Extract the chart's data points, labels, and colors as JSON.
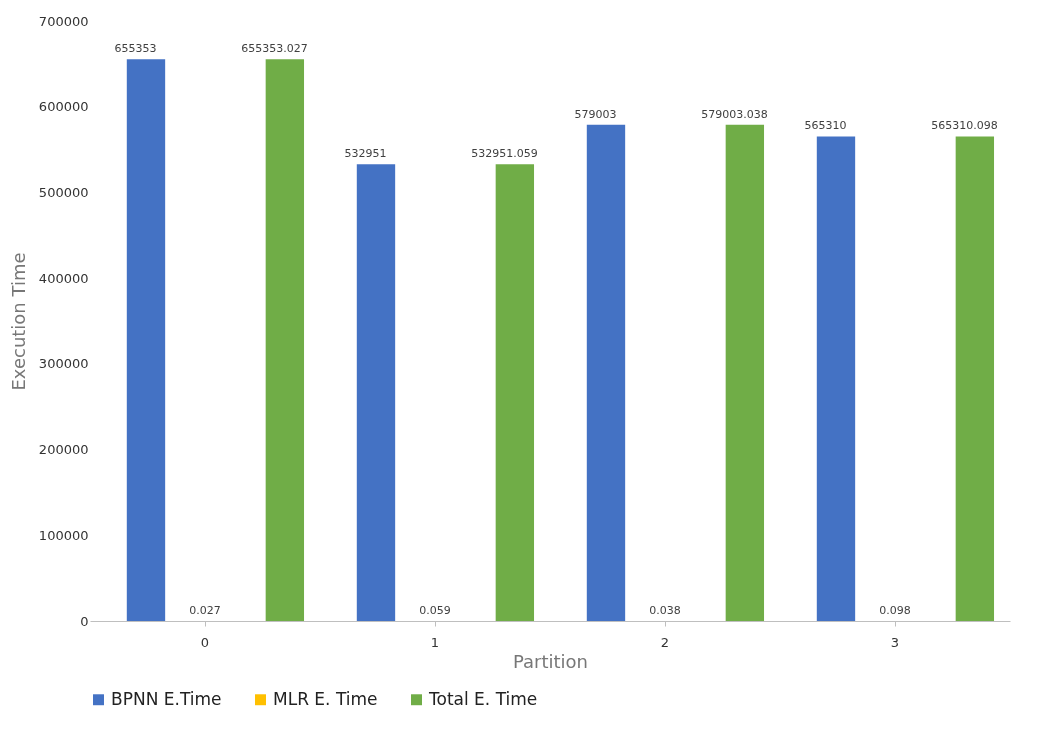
{
  "chart_data": {
    "type": "bar",
    "xlabel": "Partition",
    "ylabel": "Execution Time",
    "categories": [
      "0",
      "1",
      "2",
      "3"
    ],
    "series": [
      {
        "name": "BPNN E.Time",
        "color": "#4472c4",
        "values": [
          655353,
          532951,
          579003,
          565310
        ]
      },
      {
        "name": "MLR E. Time",
        "color": "#ffc000",
        "values": [
          0.027,
          0.059,
          0.038,
          0.098
        ]
      },
      {
        "name": "Total E. Time",
        "color": "#70ad47",
        "values": [
          655353.027,
          532951.059,
          579003.038,
          565310.098
        ]
      }
    ],
    "ylim": [
      0,
      700000
    ],
    "yticks": [
      0,
      100000,
      200000,
      300000,
      400000,
      500000,
      600000,
      700000
    ],
    "grid": false,
    "legend": "bottom",
    "data_labels": true
  }
}
